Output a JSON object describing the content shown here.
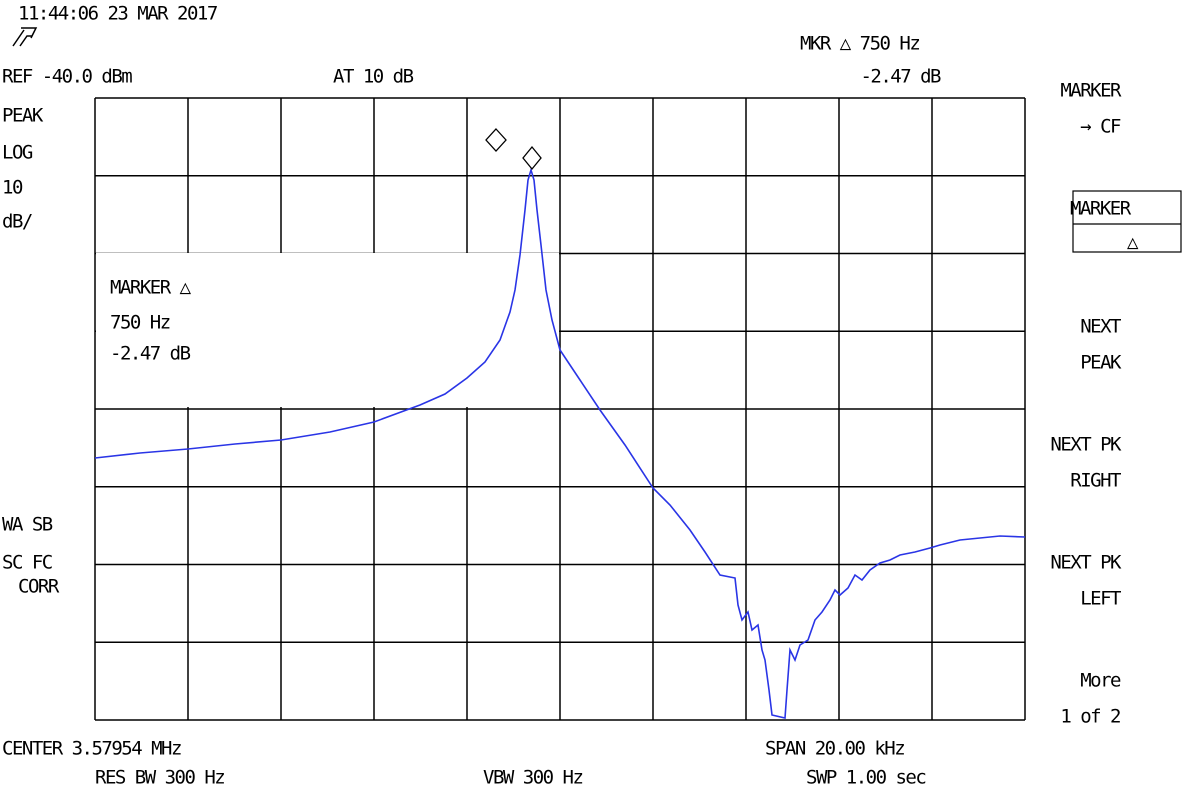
{
  "header": {
    "timestamp": "11:44:06  23 MAR 2017",
    "ref_level": "REF -40.0 dBm",
    "attenuation": "AT 10 dB",
    "marker_label": "MKR △ 750 Hz",
    "marker_value": "-2.47 dB"
  },
  "left_annotations": {
    "detector": "PEAK",
    "scale_type": "LOG",
    "scale_value": "10",
    "scale_unit": "dB/",
    "flags_1": "WA SB",
    "flags_2": "SC FC",
    "flags_3": "CORR"
  },
  "marker_readout": {
    "title": "MARKER △",
    "frequency": "750 Hz",
    "amplitude": "-2.47 dB"
  },
  "footer": {
    "center": "CENTER 3.57954 MHz",
    "span": "SPAN 20.00 kHz",
    "res_bw": "RES BW 300 Hz",
    "vbw": "VBW 300 Hz",
    "sweep": "SWP 1.00  sec"
  },
  "softkeys": [
    {
      "line1": "MARKER",
      "line2": "→ CF"
    },
    {
      "line1": "MARKER",
      "line2": "△"
    },
    {
      "line1": "NEXT",
      "line2": "PEAK"
    },
    {
      "line1": "NEXT PK",
      "line2": "RIGHT"
    },
    {
      "line1": "NEXT PK",
      "line2": "LEFT"
    },
    {
      "line1": "More",
      "line2": "1 of 2"
    }
  ]
}
